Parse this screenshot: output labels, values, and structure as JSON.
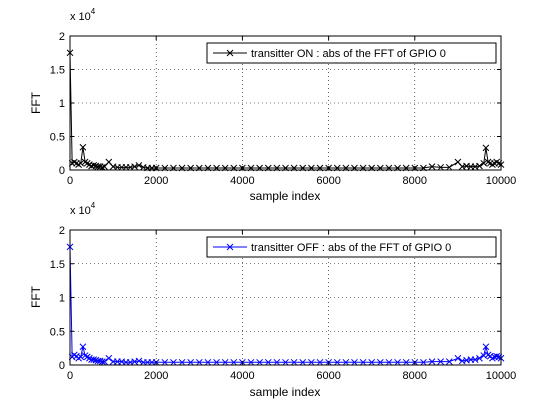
{
  "chart_data": [
    {
      "type": "scatter",
      "title": "",
      "xlabel": "sample index",
      "ylabel": "FFT",
      "y_exponent": "x 10^4",
      "y_exponent_base": "x 10",
      "y_exponent_power": "4",
      "xlim": [
        0,
        10000
      ],
      "ylim": [
        0,
        2
      ],
      "xticks": [
        "0",
        "2000",
        "4000",
        "6000",
        "8000",
        "10000"
      ],
      "yticks": [
        "0",
        "0.5",
        "1",
        "1.5",
        "2"
      ],
      "grid": true,
      "legend": "top-right",
      "legend_label": "transitter ON : abs of the FFT of GPIO 0",
      "marker": "x",
      "color": "#000000",
      "series": [
        {
          "name": "transitter ON : abs of the FFT of GPIO 0",
          "x": [
            0,
            50,
            100,
            150,
            200,
            250,
            300,
            350,
            400,
            450,
            500,
            550,
            600,
            650,
            700,
            750,
            800,
            900,
            1000,
            1100,
            1200,
            1300,
            1400,
            1500,
            1600,
            1700,
            1800,
            1900,
            2000,
            2200,
            2400,
            2600,
            2800,
            3000,
            3200,
            3400,
            3600,
            3800,
            4000,
            4200,
            4400,
            4600,
            4800,
            5000,
            5200,
            5400,
            5600,
            5800,
            6000,
            6200,
            6400,
            6600,
            6800,
            7000,
            7200,
            7400,
            7600,
            7800,
            8000,
            8200,
            8400,
            8600,
            8800,
            9000,
            9100,
            9200,
            9300,
            9400,
            9500,
            9600,
            9650,
            9700,
            9750,
            9800,
            9850,
            9900,
            9950,
            10000
          ],
          "y": [
            1.75,
            0.1,
            0.12,
            0.1,
            0.08,
            0.1,
            0.34,
            0.12,
            0.1,
            0.08,
            0.06,
            0.07,
            0.06,
            0.05,
            0.05,
            0.04,
            0.05,
            0.12,
            0.05,
            0.04,
            0.04,
            0.04,
            0.04,
            0.05,
            0.07,
            0.04,
            0.03,
            0.03,
            0.03,
            0.03,
            0.03,
            0.03,
            0.03,
            0.03,
            0.03,
            0.03,
            0.03,
            0.03,
            0.03,
            0.03,
            0.03,
            0.03,
            0.03,
            0.03,
            0.03,
            0.03,
            0.03,
            0.03,
            0.03,
            0.03,
            0.03,
            0.03,
            0.03,
            0.03,
            0.03,
            0.03,
            0.03,
            0.03,
            0.03,
            0.03,
            0.05,
            0.04,
            0.04,
            0.12,
            0.05,
            0.06,
            0.05,
            0.05,
            0.06,
            0.1,
            0.33,
            0.12,
            0.1,
            0.08,
            0.1,
            0.12,
            0.1,
            0.08
          ]
        }
      ]
    },
    {
      "type": "scatter",
      "title": "",
      "xlabel": "sample index",
      "ylabel": "FFT",
      "y_exponent": "x 10^4",
      "y_exponent_base": "x 10",
      "y_exponent_power": "4",
      "xlim": [
        0,
        10000
      ],
      "ylim": [
        0,
        2
      ],
      "xticks": [
        "0",
        "2000",
        "4000",
        "6000",
        "8000",
        "10000"
      ],
      "yticks": [
        "0",
        "0.5",
        "1",
        "1.5",
        "2"
      ],
      "grid": true,
      "legend": "top-right",
      "legend_label": "transitter OFF : abs of the FFT of GPIO 0",
      "marker": "x",
      "color": "#0000ff",
      "series": [
        {
          "name": "transitter OFF : abs of the FFT of GPIO 0",
          "x": [
            0,
            50,
            100,
            150,
            200,
            250,
            300,
            350,
            400,
            450,
            500,
            550,
            600,
            650,
            700,
            750,
            800,
            900,
            1000,
            1100,
            1200,
            1300,
            1400,
            1500,
            1600,
            1700,
            1800,
            1900,
            2000,
            2200,
            2400,
            2600,
            2800,
            3000,
            3200,
            3400,
            3600,
            3800,
            4000,
            4200,
            4400,
            4600,
            4800,
            5000,
            5200,
            5400,
            5600,
            5800,
            6000,
            6200,
            6400,
            6600,
            6800,
            7000,
            7200,
            7400,
            7600,
            7800,
            8000,
            8200,
            8400,
            8600,
            8800,
            9000,
            9100,
            9200,
            9300,
            9400,
            9500,
            9600,
            9650,
            9700,
            9750,
            9800,
            9850,
            9900,
            9950,
            10000
          ],
          "y": [
            1.75,
            0.12,
            0.15,
            0.13,
            0.1,
            0.12,
            0.27,
            0.14,
            0.12,
            0.1,
            0.08,
            0.08,
            0.07,
            0.06,
            0.06,
            0.05,
            0.05,
            0.1,
            0.05,
            0.05,
            0.05,
            0.04,
            0.04,
            0.05,
            0.06,
            0.04,
            0.04,
            0.04,
            0.04,
            0.04,
            0.04,
            0.04,
            0.04,
            0.04,
            0.04,
            0.04,
            0.04,
            0.04,
            0.04,
            0.04,
            0.04,
            0.04,
            0.04,
            0.04,
            0.04,
            0.04,
            0.04,
            0.04,
            0.04,
            0.04,
            0.04,
            0.04,
            0.04,
            0.04,
            0.04,
            0.04,
            0.04,
            0.04,
            0.04,
            0.04,
            0.05,
            0.05,
            0.05,
            0.1,
            0.06,
            0.07,
            0.08,
            0.08,
            0.1,
            0.14,
            0.27,
            0.15,
            0.13,
            0.1,
            0.12,
            0.13,
            0.12,
            0.1
          ]
        }
      ]
    }
  ]
}
